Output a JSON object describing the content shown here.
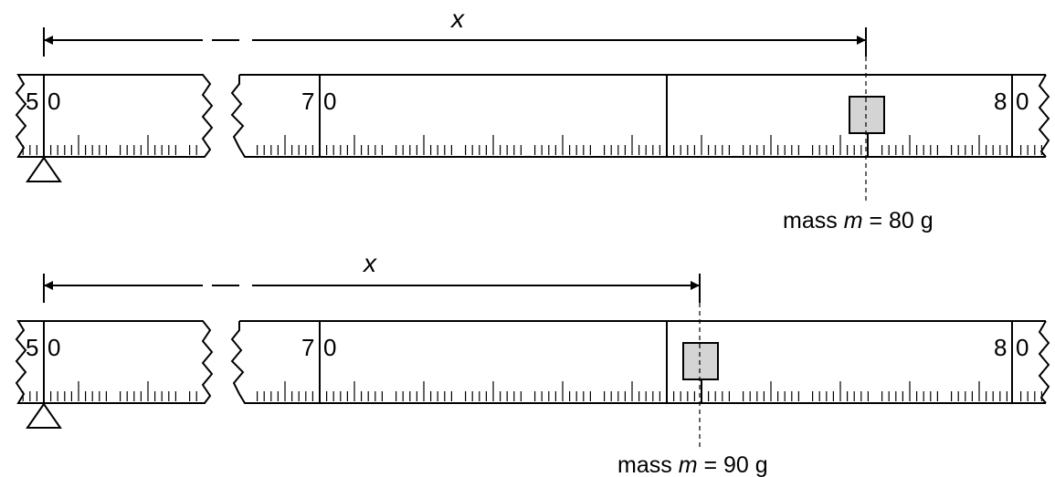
{
  "diagrams": [
    {
      "distance_label": "x",
      "ruler_labels": {
        "left": "5",
        "left_b": "0",
        "mid": "7",
        "mid_b": "0",
        "right": "8",
        "right_b": "0"
      },
      "mass_label": {
        "prefix": "mass ",
        "symbol": "m",
        "suffix": " = 80 g"
      },
      "mass_position_cm": 76.0
    },
    {
      "distance_label": "x",
      "ruler_labels": {
        "left": "5",
        "left_b": "0",
        "mid": "7",
        "mid_b": "0",
        "right": "8",
        "right_b": "0"
      },
      "mass_label": {
        "prefix": "mass ",
        "symbol": "m",
        "suffix": " = 90 g"
      },
      "mass_position_cm": 74.1
    }
  ],
  "colors": {
    "mass_fill": "#d4d4d4",
    "line": "#000000"
  },
  "icons": [
    "pivot-triangle-icon",
    "broken-edge-icon"
  ]
}
